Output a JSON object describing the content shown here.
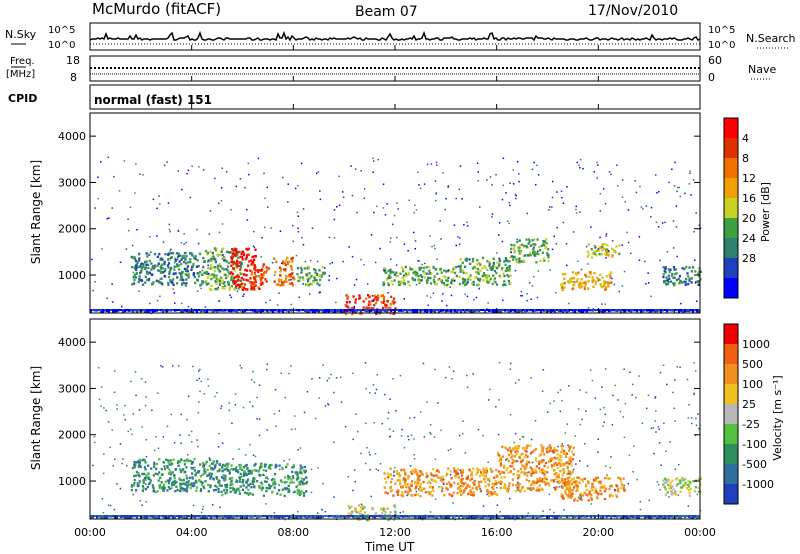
{
  "header": {
    "site": "McMurdo (fitACF)",
    "beam": "Beam 07",
    "date": "17/Nov/2010"
  },
  "noise_panel": {
    "left_label": "N.Sky",
    "right_label": "N.Search",
    "left_ticks": [
      "10^5",
      "10^0"
    ],
    "right_ticks": [
      "10^5",
      "10^0"
    ]
  },
  "freq_panel": {
    "left_label_line1": "Freq.",
    "left_label_line2": "[MHz]",
    "left_ticks": [
      "18",
      "8"
    ],
    "right_label": "Nave",
    "right_ticks": [
      "60",
      "0"
    ]
  },
  "cpid_panel": {
    "label": "CPID",
    "mode_text": "normal (fast) 151"
  },
  "xaxis": {
    "label": "Time UT",
    "ticks": [
      "00:00",
      "04:00",
      "08:00",
      "12:00",
      "16:00",
      "20:00",
      "00:00"
    ]
  },
  "power_panel": {
    "ylabel": "Slant Range [km]",
    "yticks": [
      "1000",
      "2000",
      "3000",
      "4000"
    ],
    "colorbar_label": "Power [dB]",
    "colorbar_ticks": [
      "4",
      "8",
      "12",
      "16",
      "20",
      "24",
      "28"
    ],
    "colors": [
      "#0000ff",
      "#1f3fbf",
      "#2f7f6f",
      "#3fa040",
      "#c8d020",
      "#f0a000",
      "#f07000",
      "#e03000",
      "#ff0000"
    ]
  },
  "velocity_panel": {
    "ylabel": "Slant Range [km]",
    "yticks": [
      "1000",
      "2000",
      "3000",
      "4000"
    ],
    "colorbar_label": "Velocity [m s⁻¹]",
    "colorbar_ticks": [
      "1000",
      "500",
      "100",
      "25",
      "-25",
      "-100",
      "-500",
      "-1000"
    ],
    "colors": [
      "#1f3fbf",
      "#2f6fa0",
      "#2f8f60",
      "#55c040",
      "#b8b8b8",
      "#f0c020",
      "#f09020",
      "#f06010",
      "#f00000"
    ]
  },
  "chart_data": {
    "type": "heatmap",
    "x_range_hours": [
      0,
      24
    ],
    "y_range_km": [
      180,
      4500
    ],
    "power_regions": [
      {
        "t0": 1.6,
        "t1": 4.5,
        "r0": 800,
        "r1": 1500,
        "level": 2
      },
      {
        "t0": 4.5,
        "t1": 6.0,
        "r0": 700,
        "r1": 1600,
        "level": 3
      },
      {
        "t0": 5.5,
        "t1": 6.5,
        "r0": 700,
        "r1": 1600,
        "level": 8
      },
      {
        "t0": 6.3,
        "t1": 7.0,
        "r0": 700,
        "r1": 1300,
        "level": 7
      },
      {
        "t0": 7.2,
        "t1": 8.0,
        "r0": 800,
        "r1": 1400,
        "level": 6
      },
      {
        "t0": 8.1,
        "t1": 9.2,
        "r0": 800,
        "r1": 1200,
        "level": 3
      },
      {
        "t0": 10.0,
        "t1": 12.0,
        "r0": 180,
        "r1": 600,
        "level": 7
      },
      {
        "t0": 11.5,
        "t1": 14.5,
        "r0": 800,
        "r1": 1200,
        "level": 3
      },
      {
        "t0": 14.5,
        "t1": 16.5,
        "r0": 800,
        "r1": 1400,
        "level": 3
      },
      {
        "t0": 16.5,
        "t1": 18.0,
        "r0": 1300,
        "r1": 1800,
        "level": 3
      },
      {
        "t0": 18.5,
        "t1": 20.5,
        "r0": 700,
        "r1": 1100,
        "level": 5
      },
      {
        "t0": 19.5,
        "t1": 20.8,
        "r0": 1400,
        "r1": 1700,
        "level": 4
      },
      {
        "t0": 22.5,
        "t1": 24.0,
        "r0": 800,
        "r1": 1200,
        "level": 2
      }
    ],
    "velocity_regions": [
      {
        "t0": 1.6,
        "t1": 5.0,
        "r0": 800,
        "r1": 1500,
        "level": 2
      },
      {
        "t0": 5.0,
        "t1": 8.5,
        "r0": 700,
        "r1": 1400,
        "level": 2
      },
      {
        "t0": 10.0,
        "t1": 12.0,
        "r0": 180,
        "r1": 500,
        "level": 4
      },
      {
        "t0": 11.5,
        "t1": 16.0,
        "r0": 700,
        "r1": 1300,
        "level": 6
      },
      {
        "t0": 16.0,
        "t1": 19.0,
        "r0": 800,
        "r1": 1800,
        "level": 6
      },
      {
        "t0": 18.5,
        "t1": 21.0,
        "r0": 600,
        "r1": 1100,
        "level": 6
      },
      {
        "t0": 22.5,
        "t1": 24.0,
        "r0": 700,
        "r1": 1100,
        "level": 4
      }
    ]
  }
}
